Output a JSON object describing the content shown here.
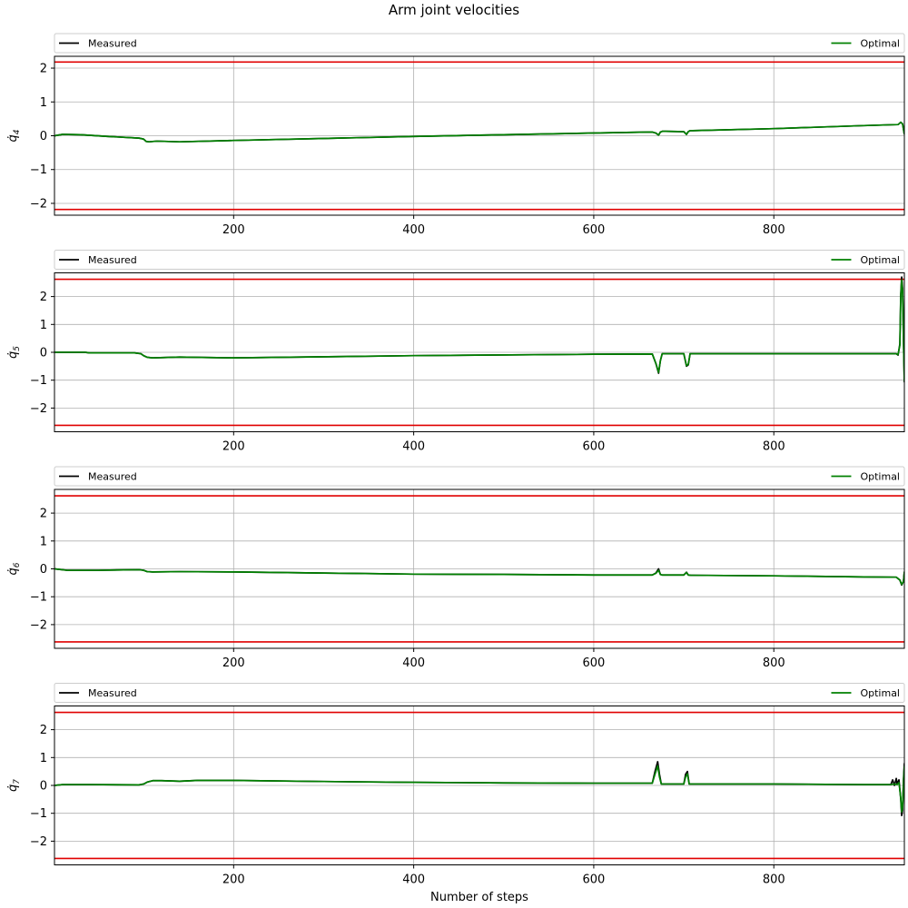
{
  "figure": {
    "title": "Arm joint velocities",
    "xlabel": "Number of steps"
  },
  "colors": {
    "measured": "#000000",
    "optimal": "#008000",
    "limit": "#e00000",
    "grid": "#b0b0b0"
  },
  "chart_data": [
    {
      "type": "line",
      "ylabel": "q̇",
      "ylabel_sub": "4",
      "xlim": [
        1,
        945
      ],
      "ylim": [
        -2.35,
        2.35
      ],
      "xticks": [
        200,
        400,
        600,
        800
      ],
      "yticks": [
        2,
        1,
        0,
        -1,
        -2
      ],
      "limits": [
        2.18,
        -2.18
      ],
      "legend": {
        "left": "Measured",
        "right": "Optimal",
        "placement": "top (above axes)"
      },
      "series": [
        {
          "name": "Measured",
          "x": [
            1,
            10,
            30,
            60,
            95,
            100,
            103,
            106,
            110,
            115,
            140,
            200,
            300,
            400,
            500,
            600,
            665,
            669,
            672,
            674,
            676,
            680,
            700,
            703,
            705,
            707,
            710,
            800,
            900,
            938,
            941,
            943,
            945
          ],
          "y": [
            0.0,
            0.04,
            0.03,
            -0.02,
            -0.07,
            -0.1,
            -0.17,
            -0.18,
            -0.17,
            -0.16,
            -0.18,
            -0.14,
            -0.08,
            -0.02,
            0.03,
            0.08,
            0.11,
            0.08,
            0.02,
            0.11,
            0.13,
            0.13,
            0.12,
            0.04,
            0.12,
            0.15,
            0.15,
            0.21,
            0.3,
            0.33,
            0.4,
            0.35,
            0.04
          ]
        },
        {
          "name": "Optimal",
          "x": [
            1,
            10,
            30,
            60,
            95,
            100,
            103,
            106,
            110,
            115,
            140,
            200,
            300,
            400,
            500,
            600,
            665,
            669,
            672,
            674,
            676,
            680,
            700,
            703,
            705,
            707,
            710,
            800,
            900,
            938,
            941,
            943,
            945
          ],
          "y": [
            0.0,
            0.04,
            0.03,
            -0.02,
            -0.07,
            -0.1,
            -0.17,
            -0.18,
            -0.17,
            -0.16,
            -0.18,
            -0.14,
            -0.08,
            -0.02,
            0.03,
            0.08,
            0.11,
            0.08,
            0.02,
            0.11,
            0.13,
            0.13,
            0.12,
            0.04,
            0.12,
            0.15,
            0.15,
            0.21,
            0.3,
            0.33,
            0.4,
            0.35,
            0.04
          ]
        }
      ]
    },
    {
      "type": "line",
      "ylabel": "q̇",
      "ylabel_sub": "5",
      "xlim": [
        1,
        945
      ],
      "ylim": [
        -2.85,
        2.85
      ],
      "xticks": [
        200,
        400,
        600,
        800
      ],
      "yticks": [
        2,
        1,
        0,
        -1,
        -2
      ],
      "limits": [
        2.62,
        -2.62
      ],
      "legend": {
        "left": "Measured",
        "right": "Optimal",
        "placement": "top (above axes)"
      },
      "series": [
        {
          "name": "Measured",
          "x": [
            1,
            35,
            40,
            90,
            97,
            100,
            104,
            110,
            140,
            200,
            400,
            600,
            665,
            669,
            672,
            674,
            676,
            680,
            700,
            703,
            705,
            707,
            710,
            900,
            936,
            938,
            940,
            941,
            942,
            943,
            944,
            945
          ],
          "y": [
            0.0,
            0.0,
            -0.02,
            -0.02,
            -0.05,
            -0.12,
            -0.18,
            -0.2,
            -0.17,
            -0.2,
            -0.12,
            -0.07,
            -0.06,
            -0.4,
            -0.75,
            -0.3,
            -0.05,
            -0.05,
            -0.05,
            -0.5,
            -0.45,
            -0.05,
            -0.05,
            -0.05,
            -0.05,
            -0.1,
            0.3,
            2.1,
            2.7,
            2.3,
            0.5,
            -1.08
          ]
        },
        {
          "name": "Optimal",
          "x": [
            1,
            35,
            40,
            90,
            97,
            100,
            104,
            110,
            140,
            200,
            400,
            600,
            665,
            669,
            672,
            674,
            676,
            680,
            700,
            703,
            705,
            707,
            710,
            900,
            936,
            938,
            940,
            941,
            942,
            943,
            944,
            945
          ],
          "y": [
            0.0,
            0.0,
            -0.02,
            -0.02,
            -0.05,
            -0.12,
            -0.18,
            -0.2,
            -0.17,
            -0.2,
            -0.12,
            -0.07,
            -0.06,
            -0.4,
            -0.72,
            -0.3,
            -0.05,
            -0.05,
            -0.05,
            -0.48,
            -0.43,
            -0.05,
            -0.05,
            -0.05,
            -0.05,
            -0.08,
            0.25,
            2.0,
            2.6,
            2.2,
            0.4,
            -1.05
          ]
        }
      ]
    },
    {
      "type": "line",
      "ylabel": "q̇",
      "ylabel_sub": "6",
      "xlim": [
        1,
        945
      ],
      "ylim": [
        -2.85,
        2.85
      ],
      "xticks": [
        200,
        400,
        600,
        800
      ],
      "yticks": [
        2,
        1,
        0,
        -1,
        -2
      ],
      "limits": [
        2.62,
        -2.62
      ],
      "legend": {
        "left": "Measured",
        "right": "Optimal",
        "placement": "top (above axes)"
      },
      "series": [
        {
          "name": "Measured",
          "x": [
            1,
            15,
            50,
            95,
            100,
            104,
            110,
            140,
            200,
            300,
            400,
            500,
            600,
            665,
            669,
            672,
            674,
            676,
            700,
            703,
            705,
            708,
            800,
            900,
            936,
            940,
            942,
            944,
            945
          ],
          "y": [
            0.0,
            -0.05,
            -0.05,
            -0.03,
            -0.05,
            -0.1,
            -0.11,
            -0.1,
            -0.11,
            -0.15,
            -0.19,
            -0.2,
            -0.22,
            -0.22,
            -0.15,
            0.0,
            -0.2,
            -0.22,
            -0.22,
            -0.12,
            -0.22,
            -0.23,
            -0.25,
            -0.29,
            -0.3,
            -0.4,
            -0.58,
            -0.45,
            -0.1
          ]
        },
        {
          "name": "Optimal",
          "x": [
            1,
            15,
            50,
            95,
            100,
            104,
            110,
            140,
            200,
            300,
            400,
            500,
            600,
            665,
            669,
            672,
            674,
            676,
            700,
            703,
            705,
            708,
            800,
            900,
            936,
            940,
            942,
            944,
            945
          ],
          "y": [
            0.0,
            -0.05,
            -0.05,
            -0.03,
            -0.05,
            -0.1,
            -0.11,
            -0.1,
            -0.11,
            -0.15,
            -0.19,
            -0.2,
            -0.22,
            -0.22,
            -0.16,
            -0.05,
            -0.2,
            -0.22,
            -0.22,
            -0.13,
            -0.22,
            -0.23,
            -0.25,
            -0.29,
            -0.3,
            -0.4,
            -0.56,
            -0.45,
            -0.1
          ]
        }
      ]
    },
    {
      "type": "line",
      "ylabel": "q̇",
      "ylabel_sub": "7",
      "xlim": [
        1,
        945
      ],
      "ylim": [
        -2.85,
        2.85
      ],
      "xticks": [
        200,
        400,
        600,
        800
      ],
      "yticks": [
        2,
        1,
        0,
        -1,
        -2
      ],
      "limits": [
        2.62,
        -2.62
      ],
      "legend": {
        "left": "Measured",
        "right": "Optimal",
        "placement": "top (above axes)"
      },
      "series": [
        {
          "name": "Measured",
          "x": [
            1,
            10,
            40,
            95,
            100,
            104,
            110,
            120,
            140,
            160,
            200,
            300,
            400,
            500,
            600,
            665,
            668,
            671,
            673,
            675,
            678,
            700,
            702,
            704,
            706,
            710,
            800,
            900,
            930,
            932,
            934,
            936,
            937,
            939,
            941,
            942,
            943,
            944,
            945
          ],
          "y": [
            0.0,
            0.03,
            0.03,
            0.02,
            0.05,
            0.12,
            0.17,
            0.17,
            0.15,
            0.18,
            0.18,
            0.14,
            0.11,
            0.09,
            0.08,
            0.08,
            0.5,
            0.85,
            0.4,
            0.05,
            0.05,
            0.05,
            0.4,
            0.5,
            0.05,
            0.05,
            0.05,
            0.03,
            0.03,
            0.2,
            0.0,
            0.25,
            0.05,
            0.2,
            -0.5,
            -1.08,
            -0.9,
            0.2,
            0.8
          ]
        },
        {
          "name": "Optimal",
          "x": [
            1,
            10,
            40,
            95,
            100,
            104,
            110,
            120,
            140,
            160,
            200,
            300,
            400,
            500,
            600,
            665,
            668,
            671,
            673,
            675,
            678,
            700,
            702,
            704,
            706,
            710,
            800,
            900,
            930,
            934,
            937,
            939,
            941,
            942,
            943,
            944,
            945
          ],
          "y": [
            0.0,
            0.03,
            0.03,
            0.02,
            0.05,
            0.12,
            0.17,
            0.17,
            0.15,
            0.18,
            0.18,
            0.14,
            0.11,
            0.09,
            0.08,
            0.08,
            0.4,
            0.7,
            0.3,
            0.05,
            0.05,
            0.05,
            0.3,
            0.42,
            0.05,
            0.05,
            0.05,
            0.03,
            0.03,
            0.05,
            0.03,
            0.1,
            -0.45,
            -0.95,
            -0.8,
            0.1,
            0.7
          ]
        }
      ]
    }
  ]
}
